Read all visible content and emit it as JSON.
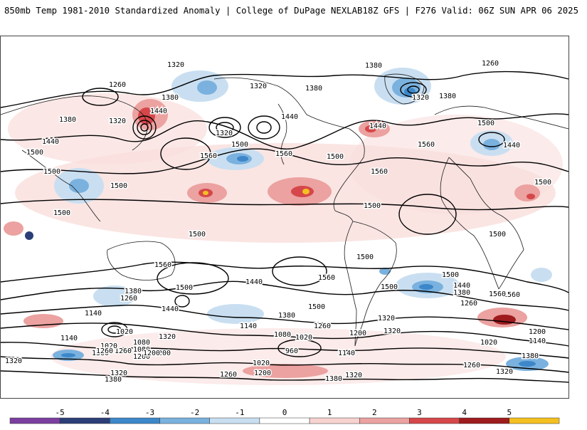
{
  "header": {
    "title_left": "850mb Temp 1981-2010 Standardized Anomaly | College of DuPage NEXLAB",
    "title_right": "18Z GFS | F276 Valid: 06Z SUN APR 06 2025"
  },
  "colorbar": {
    "tick_labels": [
      "-5",
      "-4",
      "-3",
      "-2",
      "-1",
      "0",
      "1",
      "2",
      "3",
      "4",
      "5"
    ],
    "colors": [
      "#7b3fa0",
      "#2c3e78",
      "#3c87c9",
      "#7ab1de",
      "#c9dff1",
      "#ffffff",
      "#f7d3d0",
      "#eba2a0",
      "#d5474a",
      "#9e1b1e",
      "#f4c020"
    ]
  },
  "contour_labels": [
    "1320",
    "1260",
    "1380",
    "1320",
    "1380",
    "1260",
    "1320",
    "1380",
    "1380",
    "1440",
    "1380",
    "1320",
    "1440",
    "1320",
    "1440",
    "1500",
    "1500",
    "1500",
    "1560",
    "1440",
    "1560",
    "1500",
    "1500",
    "1560",
    "1560",
    "1440",
    "1500",
    "1500",
    "1500",
    "1500",
    "1500",
    "1560",
    "1500",
    "1500",
    "1500",
    "1560",
    "1560",
    "1440",
    "1500",
    "1500",
    "1380",
    "1260",
    "1440",
    "1500",
    "1440",
    "1380",
    "1560",
    "1140",
    "1020",
    "1260",
    "1320",
    "1140",
    "1080",
    "1020",
    "1200",
    "1260",
    "1380",
    "1080",
    "1200",
    "1260",
    "1020",
    "960",
    "1140",
    "1080",
    "1020",
    "1200",
    "1320",
    "1380",
    "1260",
    "1200",
    "1320",
    "1140",
    "1380",
    "1320",
    "1200",
    "1260",
    "1320",
    "1020",
    "1200",
    "1140",
    "1380",
    "1320",
    "1260",
    "1320",
    "1380"
  ]
}
